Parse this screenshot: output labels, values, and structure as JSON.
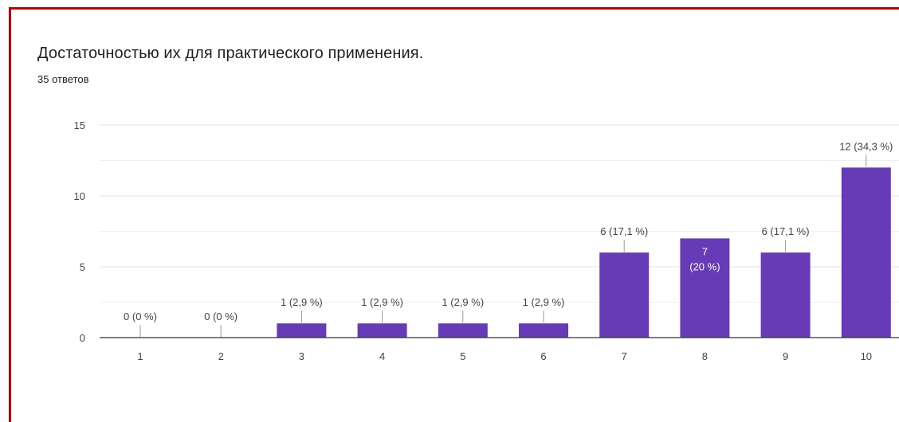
{
  "question": {
    "title": "Достаточностью их для практического применения.",
    "response_count": "35 ответов"
  },
  "colors": {
    "bar": "#673ab7",
    "frame": "#c00000",
    "grid": "#e6e6e6",
    "axis": "#333333",
    "text": "#444444",
    "inside_label": "#ffffff"
  },
  "chart_data": {
    "type": "bar",
    "categories": [
      "1",
      "2",
      "3",
      "4",
      "5",
      "6",
      "7",
      "8",
      "9",
      "10"
    ],
    "values": [
      0,
      0,
      1,
      1,
      1,
      1,
      6,
      7,
      6,
      12
    ],
    "data_labels": [
      "0 (0 %)",
      "0 (0 %)",
      "1 (2,9 %)",
      "1 (2,9 %)",
      "1 (2,9 %)",
      "1 (2,9 %)",
      "6 (17,1 %)",
      "7 (20 %)",
      "6 (17,1 %)",
      "12 (34,3 %)"
    ],
    "y_ticks": [
      0,
      5,
      10,
      15
    ],
    "ylim": [
      0,
      15
    ],
    "grid": true,
    "legend": "none",
    "title": "",
    "xlabel": "",
    "ylabel": ""
  }
}
